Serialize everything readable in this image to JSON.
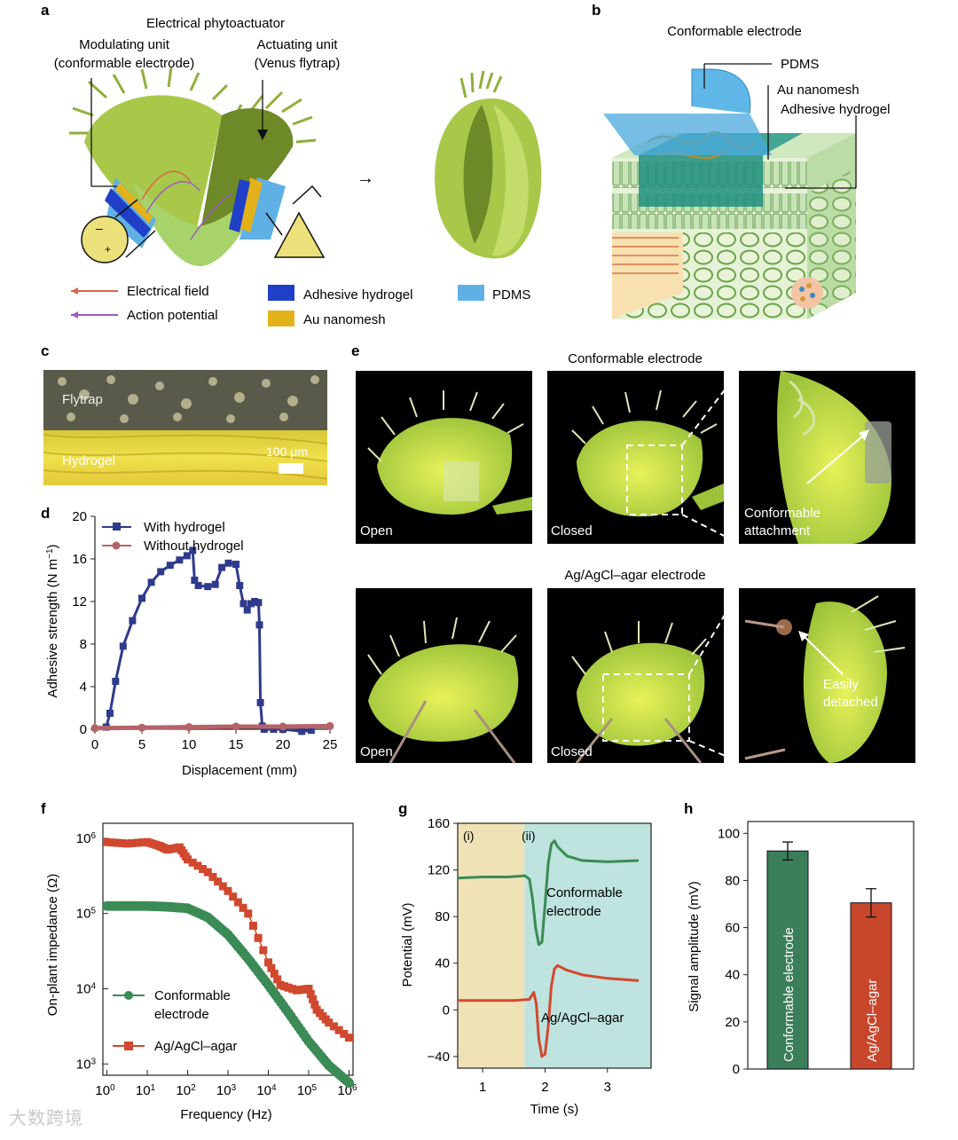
{
  "panels": {
    "a": {
      "letter": "a",
      "title": "Electrical phytoactuator",
      "modulating_line1": "Modulating unit",
      "modulating_line2": "(conformable electrode)",
      "actuating_line1": "Actuating unit",
      "actuating_line2": "(Venus flytrap)",
      "legend": {
        "electrical_field": "Electrical field",
        "action_potential": "Action potential",
        "adhesive_hydrogel": "Adhesive hydrogel",
        "au_nanomesh": "Au nanomesh",
        "pdms": "PDMS"
      },
      "colors": {
        "field": "#d9664a",
        "potential": "#9b5cc4",
        "hydrogel": "#1f3fc7",
        "au": "#e3b21b",
        "pdms": "#5fb0e5"
      }
    },
    "b": {
      "letter": "b",
      "title": "Conformable electrode",
      "pdms": "PDMS",
      "au": "Au nanomesh",
      "hydrogel": "Adhesive hydrogel"
    },
    "c": {
      "letter": "c",
      "flytrap": "Flytrap",
      "hydrogel": "Hydrogel",
      "scale": "100 μm"
    },
    "e": {
      "letter": "e",
      "row1_title": "Conformable electrode",
      "row2_title": "Ag/AgCl–agar electrode",
      "open": "Open",
      "closed": "Closed",
      "conformable_line1": "Conformable",
      "conformable_line2": "attachment",
      "easily_line1": "Easily",
      "easily_line2": "detached"
    },
    "d": {
      "letter": "d"
    },
    "f": {
      "letter": "f"
    },
    "g": {
      "letter": "g"
    },
    "h": {
      "letter": "h"
    }
  },
  "chart_data": [
    {
      "id": "d",
      "type": "line",
      "title": "",
      "xlabel": "Displacement (mm)",
      "ylabel": "Adhesive strength (N m",
      "ylabel_sup": "−1",
      "ylabel_end": ")",
      "xlim": [
        0,
        25
      ],
      "ylim": [
        0,
        20
      ],
      "xticks": [
        "0",
        "5",
        "10",
        "15",
        "20",
        "25"
      ],
      "yticks": [
        "0",
        "4",
        "8",
        "12",
        "16",
        "20"
      ],
      "legend": "top-left",
      "series": [
        {
          "name": "With hydrogel",
          "color": "#2e3a8c",
          "x": [
            1.2,
            1.6,
            2.2,
            3.0,
            4.0,
            5.0,
            6.0,
            7.0,
            8.0,
            9.0,
            9.8,
            10.4,
            10.6,
            11.0,
            12.0,
            12.8,
            13.5,
            14.2,
            15.0,
            15.4,
            15.8,
            16.2,
            16.6,
            17.0,
            17.4,
            17.5,
            17.6,
            17.8,
            18.0,
            19.0,
            20.0,
            22.0,
            23.0
          ],
          "y": [
            0.2,
            1.5,
            4.5,
            7.8,
            10.2,
            12.3,
            13.8,
            14.8,
            15.4,
            15.9,
            16.3,
            16.8,
            14.0,
            13.5,
            13.4,
            13.6,
            15.2,
            15.6,
            15.5,
            13.5,
            11.8,
            11.2,
            11.8,
            12.0,
            11.9,
            9.8,
            2.5,
            0.3,
            0.0,
            0.0,
            0.0,
            -0.2,
            -0.1
          ]
        },
        {
          "name": "Without hydrogel",
          "color": "#b56369",
          "x": [
            0,
            5,
            10,
            15,
            20,
            25
          ],
          "y": [
            0.1,
            0.15,
            0.2,
            0.25,
            0.25,
            0.3
          ]
        }
      ]
    },
    {
      "id": "f",
      "type": "scatter",
      "title": "",
      "xlabel": "Frequency (Hz)",
      "ylabel": "On-plant impedance (Ω)",
      "xscale": "log",
      "yscale": "log",
      "xlim_exp": [
        -0.1,
        6.1
      ],
      "ylim_exp": [
        2.85,
        6.2
      ],
      "xtick_exps": [
        "0",
        "1",
        "2",
        "3",
        "4",
        "5",
        "6"
      ],
      "ytick_exps": [
        "3",
        "4",
        "5",
        "6"
      ],
      "tick_base": "10",
      "legend": "bottom-left",
      "series": [
        {
          "name_line1": "Conformable",
          "name_line2": "electrode",
          "color": "#3a8b55",
          "log_x": [
            0,
            0.5,
            1,
            1.5,
            2,
            2.5,
            3,
            3.5,
            4,
            4.5,
            5,
            5.5,
            6
          ],
          "log_y": [
            5.1,
            5.1,
            5.1,
            5.09,
            5.07,
            4.95,
            4.72,
            4.4,
            4.05,
            3.68,
            3.3,
            2.98,
            2.75
          ]
        },
        {
          "name": "Ag/AgCl–agar",
          "color": "#d0492f",
          "log_x": [
            0,
            0.5,
            1,
            1.3,
            1.5,
            1.8,
            2,
            2.5,
            3,
            3.5,
            4,
            4.3,
            4.7,
            5,
            5.2,
            5.5,
            6
          ],
          "log_y": [
            5.95,
            5.93,
            5.95,
            5.9,
            5.85,
            5.88,
            5.72,
            5.55,
            5.3,
            5.0,
            4.35,
            4.05,
            3.98,
            4.0,
            3.72,
            3.55,
            3.35
          ]
        }
      ]
    },
    {
      "id": "g",
      "type": "line",
      "title": "",
      "xlabel": "Time (s)",
      "ylabel": "Potential (mV)",
      "xlim": [
        0.6,
        3.7
      ],
      "ylim": [
        -50,
        160
      ],
      "xticks": [
        "1",
        "2",
        "3"
      ],
      "yticks": [
        "−40",
        "0",
        "40",
        "80",
        "120",
        "160"
      ],
      "region_i": "(i)",
      "region_ii": "(ii)",
      "region_split": 1.67,
      "region_colors": [
        "#efe2b6",
        "#bfe3de"
      ],
      "series": [
        {
          "name_line1": "Conformable",
          "name_line2": "electrode",
          "color": "#3a8b55",
          "x": [
            0.6,
            1.0,
            1.4,
            1.68,
            1.75,
            1.8,
            1.85,
            1.9,
            1.95,
            2.0,
            2.05,
            2.1,
            2.15,
            2.2,
            2.35,
            2.6,
            3.0,
            3.5
          ],
          "y": [
            113,
            114,
            114,
            115,
            112,
            95,
            70,
            56,
            58,
            90,
            125,
            142,
            145,
            140,
            132,
            128,
            127,
            128
          ]
        },
        {
          "name": "Ag/AgCl–agar",
          "color": "#d0492f",
          "x": [
            0.6,
            1.0,
            1.5,
            1.75,
            1.82,
            1.86,
            1.9,
            1.95,
            2.0,
            2.05,
            2.1,
            2.15,
            2.2,
            2.35,
            2.6,
            3.0,
            3.5
          ],
          "y": [
            8,
            8,
            8,
            9,
            15,
            5,
            -25,
            -40,
            -38,
            -15,
            20,
            35,
            38,
            34,
            30,
            27,
            25
          ]
        }
      ]
    },
    {
      "id": "h",
      "type": "bar",
      "title": "",
      "xlabel": "",
      "ylabel": "Signal amplitude (mV)",
      "ylim": [
        0,
        105
      ],
      "yticks": [
        "0",
        "20",
        "40",
        "60",
        "80",
        "100"
      ],
      "categories": [
        "Conformable electrode",
        "Ag/AgCl–agar"
      ],
      "values": [
        92.5,
        70.5
      ],
      "errors": [
        3.8,
        6.0
      ],
      "colors": [
        "#3a7e5a",
        "#c8462c"
      ]
    }
  ],
  "watermark": "大数跨境"
}
